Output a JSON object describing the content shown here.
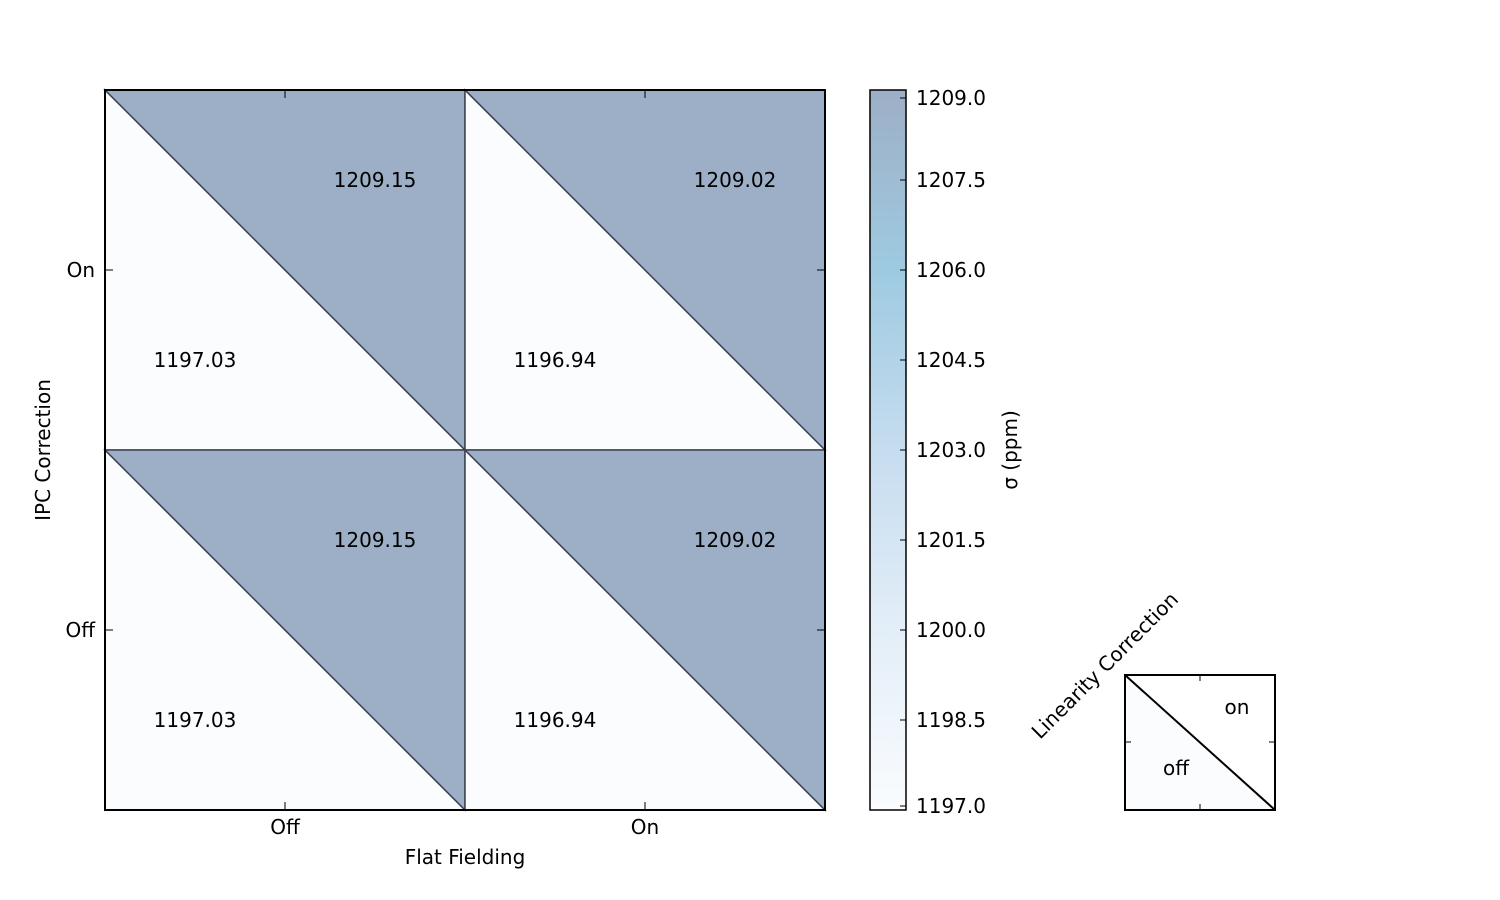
{
  "chart_data": {
    "type": "heatmap",
    "xlabel": "Flat Fielding",
    "ylabel": "IPC Correction",
    "x_categories": [
      "Off",
      "On"
    ],
    "y_categories": [
      "On",
      "Off"
    ],
    "cells": [
      {
        "ipc": "On",
        "flat": "Off",
        "off_value": 1197.03,
        "on_value": 1209.15,
        "off_label": "1197.03",
        "on_label": "1209.15"
      },
      {
        "ipc": "On",
        "flat": "On",
        "off_value": 1196.94,
        "on_value": 1209.02,
        "off_label": "1196.94",
        "on_label": "1209.02"
      },
      {
        "ipc": "Off",
        "flat": "Off",
        "off_value": 1197.03,
        "on_value": 1209.15,
        "off_label": "1197.03",
        "on_label": "1209.15"
      },
      {
        "ipc": "Off",
        "flat": "On",
        "off_value": 1196.94,
        "on_value": 1209.02,
        "off_label": "1196.94",
        "on_label": "1209.02"
      }
    ],
    "colorbar": {
      "label": "σ (ppm)",
      "range": [
        1197.0,
        1209.0
      ],
      "ticks": [
        "1197.0",
        "1198.5",
        "1200.0",
        "1201.5",
        "1203.0",
        "1204.5",
        "1206.0",
        "1207.5",
        "1209.0"
      ],
      "colors": [
        "#fafcfe",
        "#e3eef8",
        "#c6dcef",
        "#9ecae1",
        "#9dafc6"
      ]
    },
    "legend": {
      "title": "Linearity Correction",
      "upper_label": "on",
      "lower_label": "off"
    }
  }
}
